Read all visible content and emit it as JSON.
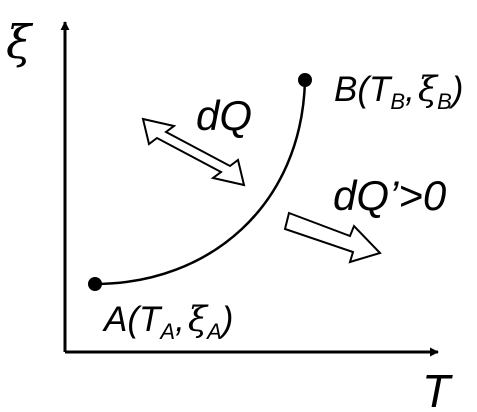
{
  "axes": {
    "x_label": "T",
    "y_label": "ξ"
  },
  "point_a": {
    "letter": "A",
    "open": "(",
    "t_main": "T",
    "t_sub": "A",
    "sep": ",",
    "xi_main": "ξ",
    "xi_sub": "A",
    "close": ")"
  },
  "point_b": {
    "letter": "B",
    "open": "(",
    "t_main": "T",
    "t_sub": "B",
    "sep": ",",
    "xi_main": "ξ",
    "xi_sub": "B",
    "close": ")"
  },
  "heat_exchange": {
    "label": "dQ",
    "icon": "double-headed-arrow-icon"
  },
  "internal_heat": {
    "label": "dQ’>0",
    "icon": "arrow-right-icon"
  },
  "colors": {
    "ink": "#000000",
    "arrow_fill": "#ffffff"
  }
}
